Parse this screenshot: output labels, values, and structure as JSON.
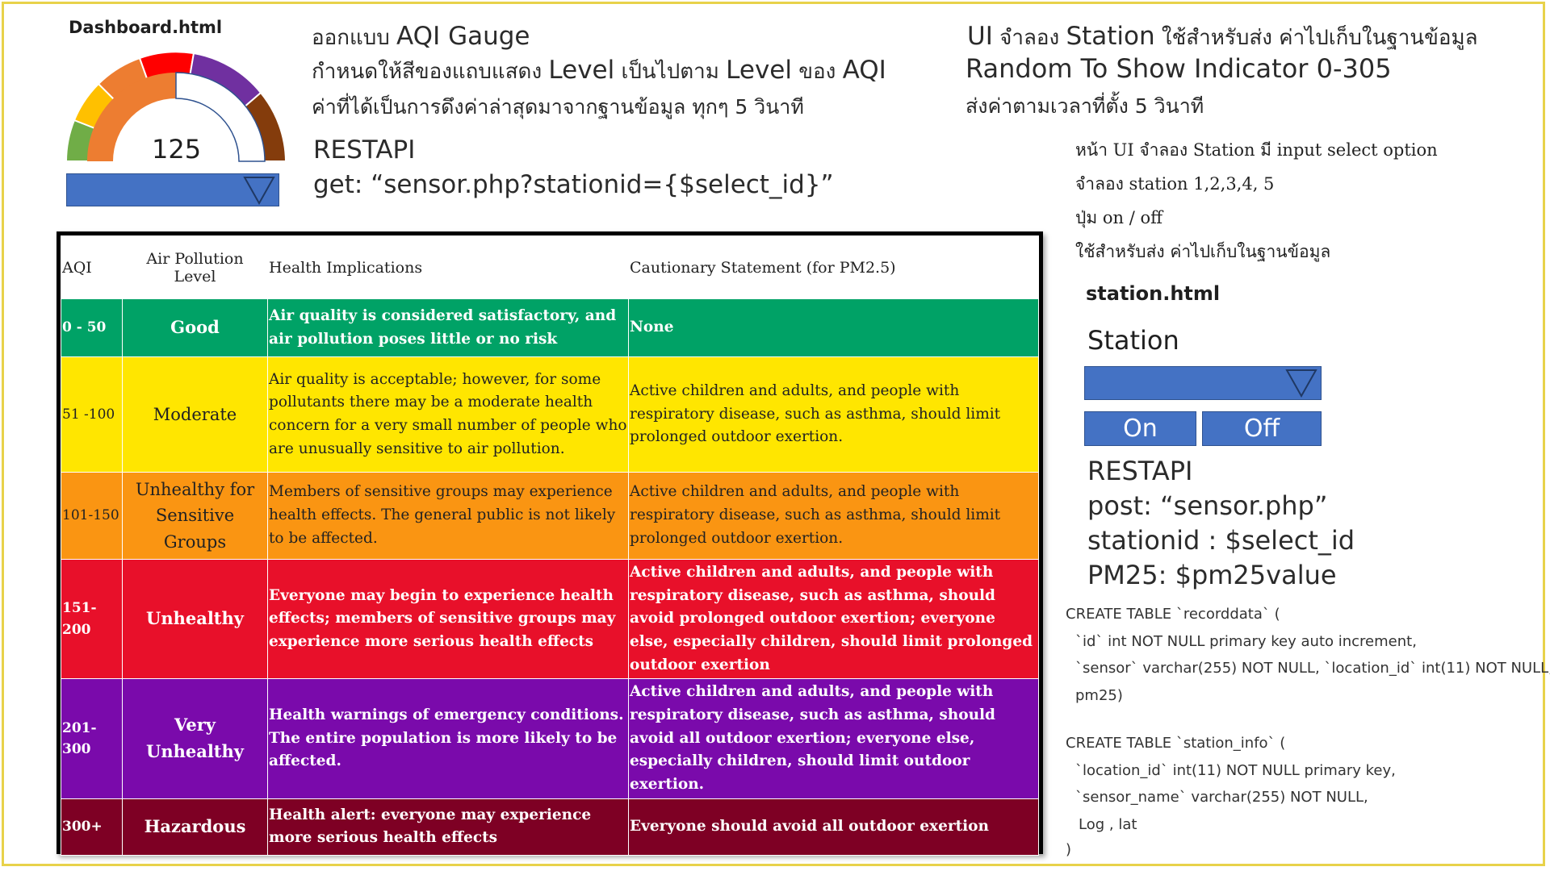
{
  "dashboard": {
    "file_label": "Dashboard.html",
    "gauge_value": "125",
    "gauge_colors": [
      "#70ad47",
      "#ffc000",
      "#ed7d31",
      "#ff0000",
      "#7030a0",
      "#843c0c"
    ]
  },
  "aqi_gauge_notes": {
    "line1_thai": "ออกแบบ ",
    "line1_en": "AQI Gauge",
    "line2_a": "กำหนดให้สีของแถบแสดง ",
    "line2_b": "Level",
    "line2_c": " เป็นไปตาม ",
    "line2_d": "Level",
    "line2_e": " ของ ",
    "line2_f": "AQI",
    "line3": "ค่าที่ได้เป็นการดึงค่าล่าสุดมาจากฐานข้อมูล ทุกๆ 5 วินาที",
    "rest_title": "RESTAPI",
    "rest_get": "get: “sensor.php?stationid={$select_id}”"
  },
  "station_notes": {
    "line1_a": "UI",
    "line1_b": " จำลอง ",
    "line1_c": "Station",
    "line1_d": " ใช้สำหรับส่ง ค่าไปเก็บในฐานข้อมูล",
    "line2": "Random  To Show  Indicator 0-305",
    "line3": "ส่งค่าตามเวลาที่ตั้ง 5 วินาที",
    "desc1": "หน้า UI จำลอง Station มี input select option",
    "desc2": "จำลอง station 1,2,3,4, 5",
    "desc3": "ปุ่ม on / off",
    "desc4": "ใช้สำหรับส่ง ค่าไปเก็บในฐานข้อมูล",
    "file_label": "station.html",
    "station_label": "Station",
    "on_label": "On",
    "off_label": "Off",
    "rest_title": "RESTAPI",
    "rest_post": "post: “sensor.php”",
    "rest_param1": "stationid : $select_id",
    "rest_param2": "PM25: $pm25value"
  },
  "sql": {
    "l1": "CREATE TABLE `recorddata` (",
    "l2": "`id` int NOT NULL primary key auto increment,",
    "l3": "`sensor` varchar(255) NOT NULL, `location_id` int(11) NOT NULL,",
    "l4": "pm25)",
    "l5": "CREATE TABLE `station_info` (",
    "l6": "`location_id` int(11) NOT NULL primary key,",
    "l7": "`sensor_name` varchar(255) NOT NULL,",
    "l8": "Log , lat",
    "l9": ")"
  },
  "aqi_table": {
    "headers": [
      "AQI",
      "Air Pollution Level",
      "Health Implications",
      "Cautionary Statement (for PM2.5)"
    ],
    "rows": [
      {
        "range": "0 - 50",
        "level": "Good",
        "health": "Air quality is considered satisfactory, and air pollution poses little or no risk",
        "caution": "None"
      },
      {
        "range": "51 -100",
        "level": "Moderate",
        "health": "Air quality is acceptable; however, for some pollutants there may be a moderate health concern for a very small number of people who are unusually sensitive to air pollution.",
        "caution": "Active children and adults, and people with respiratory disease, such as asthma, should limit prolonged outdoor exertion."
      },
      {
        "range": "101-150",
        "level": "Unhealthy for Sensitive Groups",
        "health": "Members of sensitive groups may experience health effects. The general public is not likely to be affected.",
        "caution": "Active children and adults, and people with respiratory disease, such as asthma, should limit prolonged outdoor exertion."
      },
      {
        "range": "151-200",
        "level": "Unhealthy",
        "health": "Everyone may begin to experience health effects; members of sensitive groups may experience more serious health effects",
        "caution": "Active children and adults, and people with respiratory disease, such as asthma, should avoid prolonged outdoor exertion; everyone else, especially children, should limit prolonged outdoor exertion"
      },
      {
        "range": "201-300",
        "level": "Very Unhealthy",
        "health": "Health warnings of emergency conditions. The entire population is more likely to be affected.",
        "caution": "Active children and adults, and people with respiratory disease, such as asthma, should avoid all outdoor exertion; everyone else, especially children, should limit outdoor exertion."
      },
      {
        "range": "300+",
        "level": "Hazardous",
        "health": "Health alert: everyone may experience more serious health effects",
        "caution": "Everyone should avoid all outdoor exertion"
      }
    ]
  }
}
